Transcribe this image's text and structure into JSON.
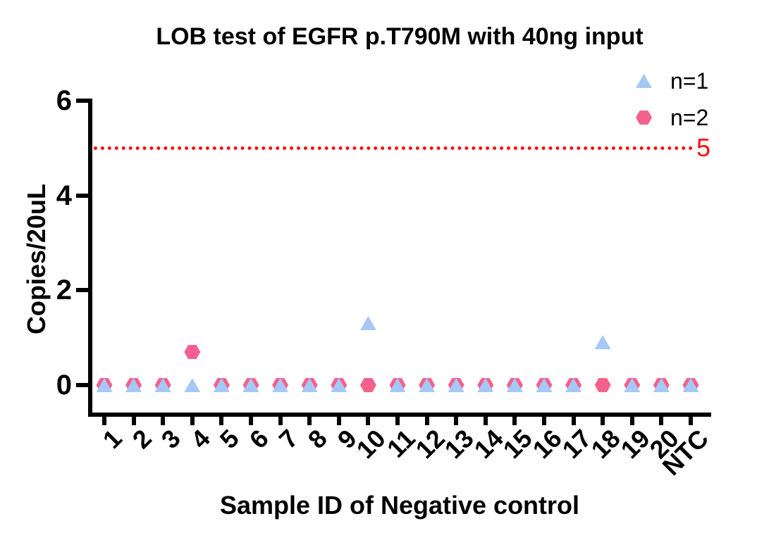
{
  "title": "LOB test of EGFR p.T790M with 40ng input",
  "chart_data": {
    "type": "scatter",
    "title": "LOB test of EGFR p.T790M with 40ng input",
    "xlabel": "Sample ID of Negative control",
    "ylabel": "Copies/20uL",
    "categories": [
      "1",
      "2",
      "3",
      "4",
      "5",
      "6",
      "7",
      "8",
      "9",
      "10",
      "11",
      "12",
      "13",
      "14",
      "15",
      "16",
      "17",
      "18",
      "19",
      "20",
      "NTC"
    ],
    "series": [
      {
        "name": "n=1",
        "marker": "triangle",
        "color": "#a5c8f6",
        "values": [
          0,
          0,
          0,
          0,
          0,
          0,
          0,
          0,
          0,
          1.3,
          0,
          0,
          0,
          0,
          0,
          0,
          0,
          0.9,
          0,
          0,
          0
        ]
      },
      {
        "name": "n=2",
        "marker": "hexagon",
        "color": "#f4618d",
        "values": [
          0,
          0,
          0,
          0.7,
          0,
          0,
          0,
          0,
          0,
          0,
          0,
          0,
          0,
          0,
          0,
          0,
          0,
          0,
          0,
          0,
          0
        ]
      }
    ],
    "threshold": {
      "value": 5,
      "label": "5",
      "color": "#fb0d0d",
      "style": "dotted"
    },
    "yticks": [
      0,
      2,
      4,
      6
    ],
    "ylim": [
      -0.65,
      6.05
    ],
    "grid": false,
    "legend_position": "top-right",
    "axis_color": "#000000"
  }
}
